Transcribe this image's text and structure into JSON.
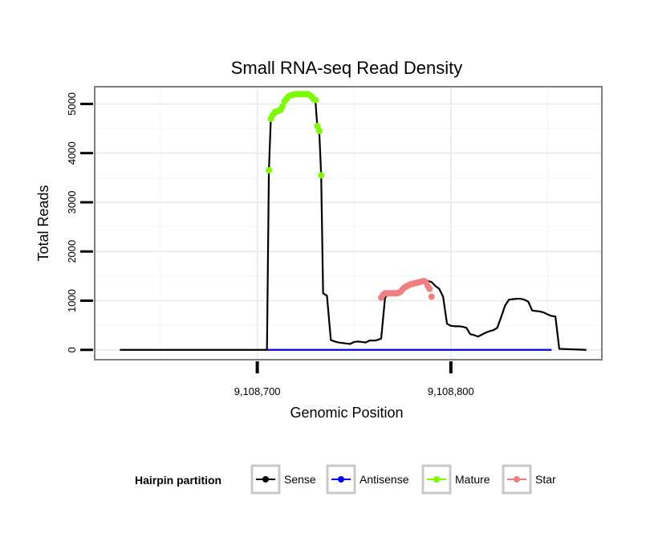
{
  "chart_data": {
    "type": "line",
    "title": "Small RNA-seq Read Density",
    "xlabel": "Genomic Position",
    "ylabel": "Total Reads",
    "xlim": [
      9108616,
      9108878
    ],
    "ylim": [
      -200,
      5350
    ],
    "x_ticks": [
      {
        "value": 9108700,
        "label": "9,108,700"
      },
      {
        "value": 9108800,
        "label": "9,108,800"
      }
    ],
    "y_ticks": [
      {
        "value": 0,
        "label": "0"
      },
      {
        "value": 1000,
        "label": "1000"
      },
      {
        "value": 2000,
        "label": "2000"
      },
      {
        "value": 3000,
        "label": "3000"
      },
      {
        "value": 4000,
        "label": "4000"
      },
      {
        "value": 5000,
        "label": "5000"
      }
    ],
    "grid": true,
    "legend": {
      "title": "Hairpin partition",
      "position": "bottom",
      "entries": [
        {
          "name": "Sense",
          "color": "#000000"
        },
        {
          "name": "Antisense",
          "color": "#0000ff"
        },
        {
          "name": "Mature",
          "color": "#7cfc00"
        },
        {
          "name": "Star",
          "color": "#f08080"
        }
      ]
    },
    "series": [
      {
        "name": "Sense",
        "color": "#000000",
        "marker": false,
        "x": [
          9108629,
          9108705,
          9108706,
          9108707,
          9108708,
          9108709,
          9108710,
          9108711,
          9108712,
          9108714,
          9108716,
          9108718,
          9108720,
          9108722,
          9108724,
          9108726,
          9108728,
          9108729,
          9108730,
          9108731,
          9108732,
          9108733,
          9108734,
          9108736,
          9108738,
          9108740,
          9108742,
          9108744,
          9108746,
          9108748,
          9108750,
          9108752,
          9108754,
          9108756,
          9108758,
          9108760,
          9108761,
          9108762,
          9108764,
          9108766,
          9108768,
          9108770,
          9108772,
          9108774,
          9108776,
          9108778,
          9108780,
          9108782,
          9108784,
          9108786,
          9108788,
          9108790,
          9108792,
          9108794,
          9108796,
          9108798,
          9108800,
          9108802,
          9108804,
          9108806,
          9108808,
          9108810,
          9108812,
          9108814,
          9108816,
          9108818,
          9108820,
          9108822,
          9108824,
          9108826,
          9108828,
          9108830,
          9108832,
          9108834,
          9108836,
          9108838,
          9108840,
          9108842,
          9108844,
          9108846,
          9108848,
          9108850,
          9108852,
          9108854,
          9108856,
          9108870
        ],
        "values": [
          0,
          0,
          3650,
          4700,
          4800,
          4850,
          4870,
          4900,
          4950,
          5050,
          5150,
          5180,
          5200,
          5200,
          5200,
          5200,
          5150,
          5100,
          5080,
          4550,
          4450,
          3550,
          1150,
          1100,
          200,
          170,
          150,
          140,
          130,
          120,
          160,
          170,
          160,
          150,
          190,
          190,
          190,
          200,
          230,
          1060,
          1150,
          1150,
          1150,
          1160,
          1230,
          1290,
          1330,
          1350,
          1360,
          1380,
          1400,
          1380,
          1300,
          1240,
          1080,
          530,
          490,
          480,
          480,
          470,
          450,
          320,
          300,
          270,
          310,
          350,
          380,
          400,
          450,
          670,
          900,
          1020,
          1030,
          1040,
          1040,
          1020,
          980,
          800,
          790,
          780,
          760,
          720,
          690,
          680,
          20,
          0
        ]
      },
      {
        "name": "Antisense",
        "color": "#0000ff",
        "marker": false,
        "x": [
          9108705,
          9108852
        ],
        "values": [
          0,
          0
        ]
      },
      {
        "name": "Mature",
        "color": "#7cfc00",
        "marker": true,
        "x": [
          9108706,
          9108707,
          9108708,
          9108709,
          9108710,
          9108711,
          9108712,
          9108713,
          9108714,
          9108715,
          9108716,
          9108717,
          9108718,
          9108719,
          9108720,
          9108721,
          9108722,
          9108723,
          9108724,
          9108725,
          9108726,
          9108727,
          9108728,
          9108729,
          9108730,
          9108731,
          9108732,
          9108733
        ],
        "values": [
          3650,
          4700,
          4780,
          4830,
          4850,
          4860,
          4880,
          4950,
          5050,
          5100,
          5150,
          5170,
          5180,
          5190,
          5200,
          5200,
          5200,
          5200,
          5200,
          5200,
          5200,
          5180,
          5150,
          5100,
          5080,
          4550,
          4450,
          3550
        ]
      },
      {
        "name": "Star",
        "color": "#f08080",
        "marker": true,
        "x": [
          9108764,
          9108765,
          9108766,
          9108767,
          9108768,
          9108769,
          9108770,
          9108771,
          9108772,
          9108773,
          9108774,
          9108775,
          9108776,
          9108777,
          9108778,
          9108779,
          9108780,
          9108781,
          9108782,
          9108783,
          9108784,
          9108785,
          9108786,
          9108787,
          9108788,
          9108789,
          9108790
        ],
        "values": [
          1060,
          1120,
          1150,
          1150,
          1150,
          1150,
          1150,
          1150,
          1150,
          1160,
          1180,
          1230,
          1270,
          1290,
          1310,
          1330,
          1340,
          1350,
          1360,
          1370,
          1380,
          1390,
          1400,
          1380,
          1300,
          1240,
          1080
        ]
      }
    ]
  }
}
